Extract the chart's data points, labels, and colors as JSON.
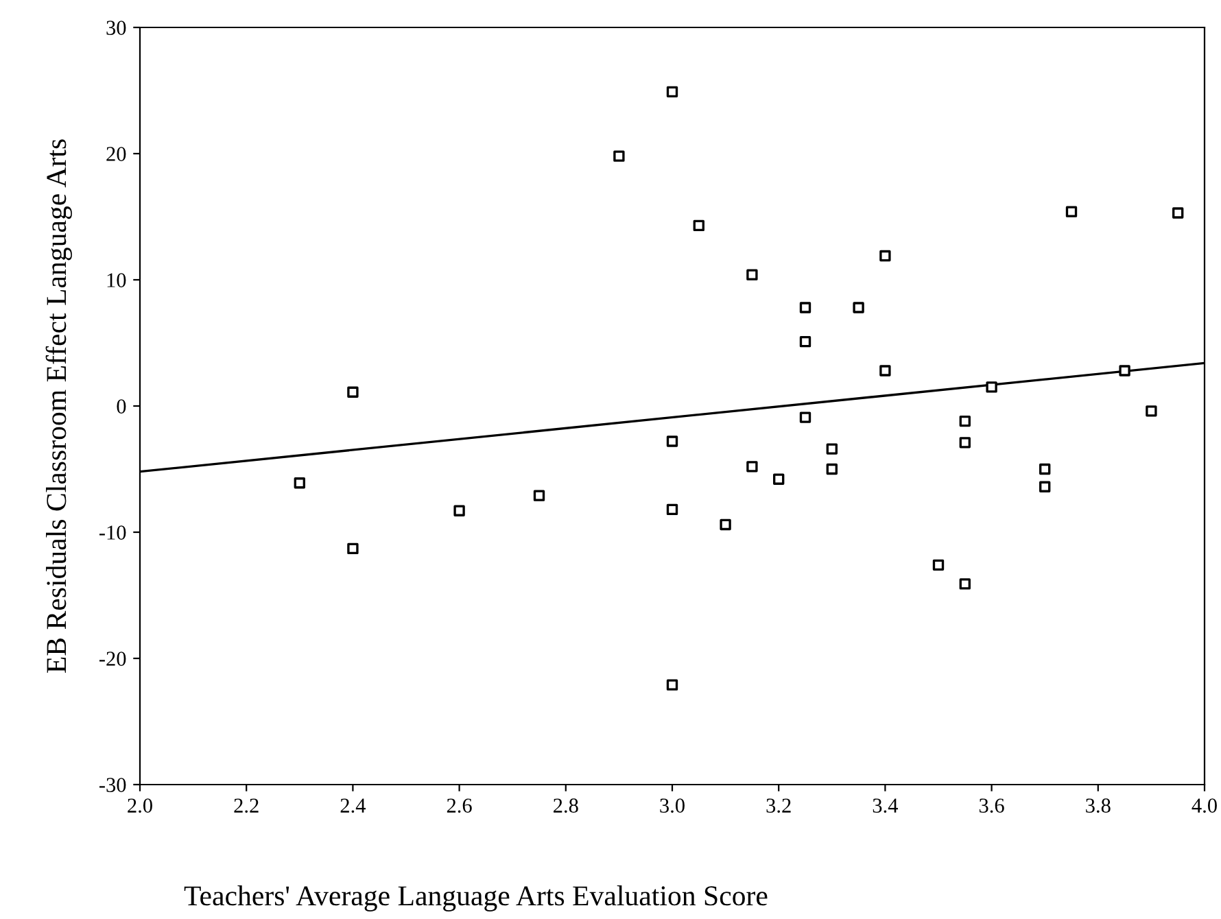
{
  "chart_data": {
    "type": "scatter",
    "xlabel": "Teachers' Average Language Arts Evaluation Score",
    "ylabel": "EB Residuals Classroom Effect Language Arts",
    "xlim": [
      2.0,
      4.0
    ],
    "ylim": [
      -30,
      30
    ],
    "xticks": [
      {
        "value": 2.0,
        "label": "2.0"
      },
      {
        "value": 2.2,
        "label": "2.2"
      },
      {
        "value": 2.4,
        "label": "2.4"
      },
      {
        "value": 2.6,
        "label": "2.6"
      },
      {
        "value": 2.8,
        "label": "2.8"
      },
      {
        "value": 3.0,
        "label": "3.0"
      },
      {
        "value": 3.2,
        "label": "3.2"
      },
      {
        "value": 3.4,
        "label": "3.4"
      },
      {
        "value": 3.6,
        "label": "3.6"
      },
      {
        "value": 3.8,
        "label": "3.8"
      },
      {
        "value": 4.0,
        "label": "4.0"
      }
    ],
    "yticks": [
      -30,
      -20,
      -10,
      0,
      10,
      20,
      30
    ],
    "grid": false,
    "legend": false,
    "series": [
      {
        "marker": "square",
        "color": "#000000",
        "x": [
          2.3,
          2.4,
          2.4,
          2.6,
          2.75,
          2.9,
          3.0,
          3.0,
          3.0,
          3.0,
          3.05,
          3.1,
          3.15,
          3.15,
          3.2,
          3.25,
          3.25,
          3.25,
          3.3,
          3.3,
          3.35,
          3.4,
          3.4,
          3.5,
          3.55,
          3.55,
          3.55,
          3.6,
          3.7,
          3.7,
          3.75,
          3.85,
          3.9,
          3.95
        ],
        "values": [
          -6.1,
          1.1,
          -11.3,
          -8.3,
          -7.1,
          19.8,
          24.9,
          -2.8,
          -8.2,
          -22.1,
          14.3,
          -9.4,
          10.4,
          -4.8,
          -5.8,
          7.8,
          5.1,
          -0.9,
          -3.4,
          -5.0,
          7.8,
          11.9,
          2.8,
          -12.6,
          -1.2,
          -2.9,
          -14.1,
          1.5,
          -5.0,
          -6.4,
          15.4,
          2.8,
          -0.4,
          15.3
        ]
      },
      {
        "type": "line",
        "marker": "none",
        "line_style": "solid",
        "color": "#000000",
        "x": [
          2.0,
          4.0
        ],
        "values": [
          -5.2,
          3.4
        ]
      }
    ]
  }
}
